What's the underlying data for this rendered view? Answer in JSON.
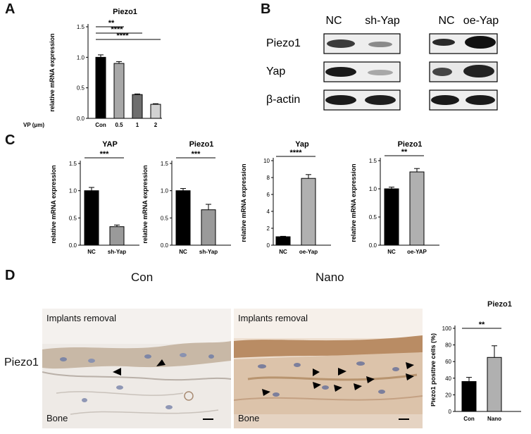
{
  "panels": {
    "A": "A",
    "B": "B",
    "C": "C",
    "D": "D"
  },
  "blot": {
    "groups": [
      {
        "a": "NC",
        "b": "sh-Yap"
      },
      {
        "a": "NC",
        "b": "oe-Yap"
      }
    ],
    "rows": [
      "Piezo1",
      "Yap",
      "β-actin"
    ]
  },
  "micro": {
    "con_title": "Con",
    "nano_title": "Nano",
    "row_label": "Piezo1",
    "top_label": "Implants removal",
    "bottom_label": "Bone"
  },
  "chart_data": [
    {
      "type": "bar",
      "title": "Piezo1",
      "ylabel": "relative mRNA expression",
      "xlabel_prefix": "VP (μm)",
      "categories": [
        "Con",
        "0.5",
        "1",
        "2"
      ],
      "values": [
        1.0,
        0.9,
        0.39,
        0.23
      ],
      "errors": [
        0.04,
        0.03,
        0.01,
        0.01
      ],
      "colors": [
        "#000000",
        "#a8a8a8",
        "#6e6e6e",
        "#d2d2d2"
      ],
      "ylim": [
        0,
        1.5
      ],
      "yticks": [
        "0.0",
        "0.5",
        "1.0",
        "1.5"
      ],
      "significance": [
        {
          "from": 0,
          "to": 1,
          "label": "**"
        },
        {
          "from": 0,
          "to": 2,
          "label": "****"
        },
        {
          "from": 0,
          "to": 3,
          "label": "****"
        }
      ]
    },
    {
      "type": "bar",
      "title": "YAP",
      "ylabel": "relative mRNA expression",
      "categories": [
        "NC",
        "sh-Yap"
      ],
      "values": [
        1.0,
        0.34
      ],
      "errors": [
        0.06,
        0.03
      ],
      "colors": [
        "#000000",
        "#9a9a9a"
      ],
      "ylim": [
        0,
        1.5
      ],
      "yticks": [
        "0.0",
        "0.5",
        "1.0",
        "1.5"
      ],
      "significance": [
        {
          "from": 0,
          "to": 1,
          "label": "***"
        }
      ]
    },
    {
      "type": "bar",
      "title": "Piezo1",
      "ylabel": "relative mRNA expression",
      "categories": [
        "NC",
        "sh-Yap"
      ],
      "values": [
        1.0,
        0.65
      ],
      "errors": [
        0.04,
        0.1
      ],
      "colors": [
        "#000000",
        "#9a9a9a"
      ],
      "ylim": [
        0,
        1.5
      ],
      "yticks": [
        "0.0",
        "0.5",
        "1.0",
        "1.5"
      ],
      "significance": [
        {
          "from": 0,
          "to": 1,
          "label": "***"
        }
      ]
    },
    {
      "type": "bar",
      "title": "Yap",
      "ylabel": "relative mRNA expression",
      "categories": [
        "NC",
        "oe-Yap"
      ],
      "values": [
        1.0,
        7.9
      ],
      "errors": [
        0.05,
        0.45
      ],
      "colors": [
        "#000000",
        "#b0b0b0"
      ],
      "ylim": [
        0,
        10
      ],
      "yticks": [
        "0",
        "2",
        "4",
        "6",
        "8",
        "10"
      ],
      "significance": [
        {
          "from": 0,
          "to": 1,
          "label": "****"
        }
      ]
    },
    {
      "type": "bar",
      "title": "Piezo1",
      "ylabel": "relative mRNA expression",
      "categories": [
        "NC",
        "oe-YAP"
      ],
      "values": [
        1.0,
        1.3
      ],
      "errors": [
        0.03,
        0.06
      ],
      "colors": [
        "#000000",
        "#b0b0b0"
      ],
      "ylim": [
        0,
        1.5
      ],
      "yticks": [
        "0.0",
        "0.5",
        "1.0",
        "1.5"
      ],
      "significance": [
        {
          "from": 0,
          "to": 1,
          "label": "**"
        }
      ]
    },
    {
      "type": "bar",
      "title": "Piezo1",
      "ylabel": "Piezo1 positive cells (%)",
      "categories": [
        "Con",
        "Nano"
      ],
      "values": [
        36,
        65
      ],
      "errors": [
        5,
        14
      ],
      "colors": [
        "#000000",
        "#b0b0b0"
      ],
      "ylim": [
        0,
        100
      ],
      "yticks": [
        "0",
        "20",
        "40",
        "60",
        "80",
        "100"
      ],
      "significance": [
        {
          "from": 0,
          "to": 1,
          "label": "**"
        }
      ]
    }
  ]
}
